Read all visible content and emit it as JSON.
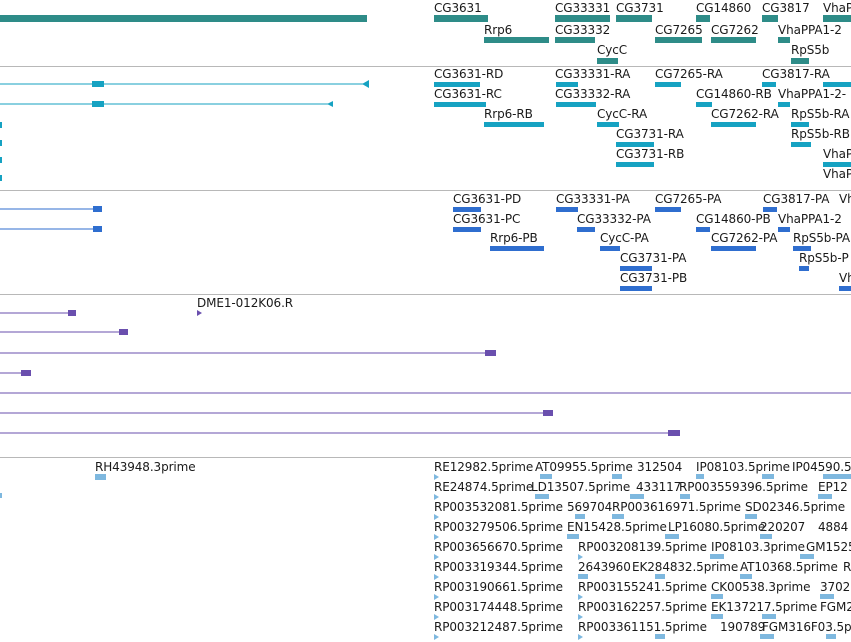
{
  "colors": {
    "genes": "#2e8c88",
    "transcripts_a": "#16a2c2",
    "transcripts_b": "#2f6ecf",
    "alignments": "#6a4fae",
    "ests": "#7eb8df",
    "divider": "#b8b8b8"
  },
  "tracks": {
    "genes": {
      "labels": [
        "CG3631",
        "CG33331",
        "CG3731",
        "CG14860",
        "CG3817",
        "VhaP",
        "Rrp6",
        "CG33332",
        "CG7265",
        "CG7262",
        "VhaPPA1-2",
        "CycC",
        "RpS5b"
      ]
    },
    "transcripts_a": {
      "labels": [
        "CG3631-RD",
        "CG33331-RA",
        "CG7265-RA",
        "CG3817-RA",
        "CG3631-RC",
        "CG33332-RA",
        "CG14860-RB",
        "VhaPPA1-2-",
        "Rrp6-RB",
        "CycC-RA",
        "CG7262-RA",
        "RpS5b-RA",
        "CG3731-RA",
        "RpS5b-RB",
        "CG3731-RB",
        "VhaP",
        "VhaP"
      ]
    },
    "transcripts_b": {
      "labels": [
        "CG3631-PD",
        "CG33331-PA",
        "CG7265-PA",
        "CG3817-PA",
        "Vh",
        "CG3631-PC",
        "CG33332-PA",
        "CG14860-PB",
        "VhaPPA1-2",
        "Rrp6-PB",
        "CycC-PA",
        "CG7262-PA",
        "RpS5b-PA",
        "CG3731-PA",
        "RpS5b-P",
        "CG3731-PB",
        "Vh"
      ]
    },
    "alignments": {
      "labels": [
        "DME1-012K06.R"
      ]
    },
    "ests": {
      "labels": [
        "RH43948.3prime",
        "RE12982.5prime",
        "AT09955.5prime",
        "312504",
        "IP08103.5prime",
        "IP04590.5",
        "RE24874.5prime",
        "LD13507.5prime",
        "433117",
        "RP003559396.5prime",
        "EP12",
        "RP003532081.5prime",
        "569704",
        "RP003616971.5prime",
        "SD02346.5prime",
        "RP003279506.5prime",
        "EN15428.5prime",
        "LP16080.5prime",
        "220207",
        "4884",
        "RP003656670.5prime",
        "RP003208139.5prime",
        "IP08103.3prime",
        "GM1525",
        "RP003319344.5prime",
        "2643960",
        "EK284832.5prime",
        "AT10368.5prime",
        "R",
        "RP003190661.5prime",
        "RP003155241.5prime",
        "CK00538.3prime",
        "3702",
        "RP003174448.5prime",
        "RP003162257.5prime",
        "EK137217.5prime",
        "FGM2",
        "RP003212487.5prime",
        "RP003361151.5prime",
        "190789",
        "FGM316F03.5p"
      ]
    }
  }
}
